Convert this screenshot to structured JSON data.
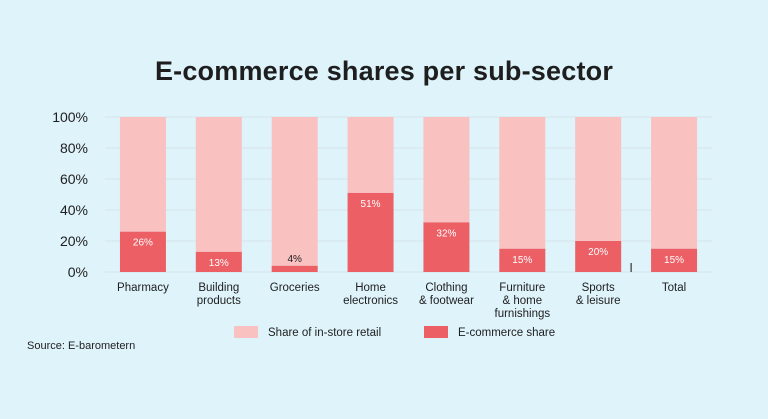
{
  "title": "E-commerce shares per sub-sector",
  "source": "Source: E-barometern",
  "colors": {
    "instore": "#fac1c1",
    "ecommerce": "#ec5f65",
    "grid": "#d7e3ea",
    "axis": "#8a8f95",
    "text": "#1e1e1e",
    "label_on_bar": "#ffffff",
    "label_above_bar": "#1e1e1e"
  },
  "chart_data": {
    "type": "bar",
    "stacked": true,
    "title": "E-commerce shares per sub-sector",
    "categories": [
      [
        "Pharmacy"
      ],
      [
        "Building",
        "products"
      ],
      [
        "Groceries"
      ],
      [
        "Home",
        "electronics"
      ],
      [
        "Clothing",
        "& footwear"
      ],
      [
        "Furniture",
        "& home",
        "furnishings"
      ],
      [
        "Sports",
        "& leisure"
      ],
      [
        "Total"
      ]
    ],
    "series": [
      {
        "name": "E-commerce share",
        "values": [
          26,
          13,
          4,
          51,
          32,
          15,
          20,
          15
        ]
      },
      {
        "name": "Share of in-store retail",
        "values": [
          74,
          87,
          96,
          49,
          68,
          85,
          80,
          85
        ]
      }
    ],
    "data_labels": [
      "26%",
      "13%",
      "4%",
      "51%",
      "32%",
      "15%",
      "20%",
      "15%"
    ],
    "yticks": [
      "0%",
      "20%",
      "40%",
      "60%",
      "80%",
      "100%"
    ],
    "ylim": [
      0,
      100
    ],
    "grid": true,
    "legend_position": "bottom",
    "legend": [
      "Share of in-store retail",
      "E-commerce share"
    ]
  }
}
